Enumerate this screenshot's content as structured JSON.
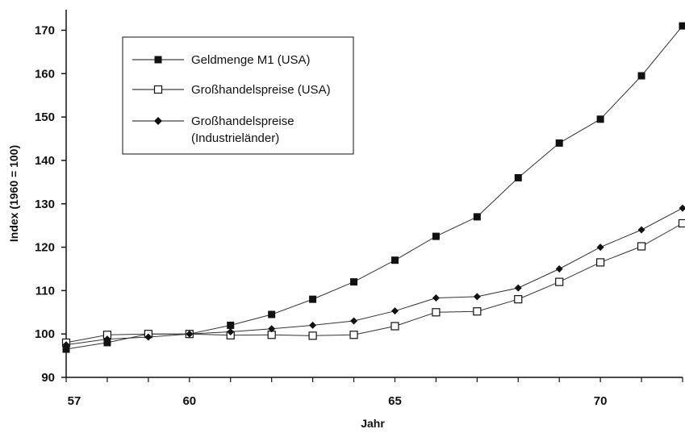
{
  "chart_data": {
    "type": "line",
    "xlabel": "Jahr",
    "ylabel": "Index (1960 = 100)",
    "xlim": [
      57,
      72
    ],
    "ylim": [
      90,
      170
    ],
    "x_ticks": [
      57,
      60,
      65,
      70
    ],
    "y_ticks": [
      90,
      100,
      110,
      120,
      130,
      140,
      150,
      160,
      170
    ],
    "grid": false,
    "legend_position": "top-left",
    "x": [
      57,
      58,
      59,
      60,
      61,
      62,
      63,
      64,
      65,
      66,
      67,
      68,
      69,
      70,
      71,
      72
    ],
    "series": [
      {
        "name": "Geldmenge M1 (USA)",
        "marker": "filled-square",
        "values": [
          96.5,
          98.0,
          100.0,
          100.0,
          102.0,
          104.5,
          108.0,
          112.0,
          117.0,
          122.5,
          127.0,
          136.0,
          144.0,
          149.5,
          159.5,
          171.0
        ]
      },
      {
        "name": "Großhandelspreise (USA)",
        "marker": "open-square",
        "values": [
          98.0,
          99.8,
          100.0,
          100.0,
          99.7,
          99.8,
          99.6,
          99.8,
          101.8,
          105.0,
          105.2,
          108.0,
          112.0,
          116.5,
          120.2,
          125.5
        ]
      },
      {
        "name": "Großhandelspreise",
        "name_line2": "(Industrieländer)",
        "marker": "filled-diamond",
        "values": [
          97.5,
          98.8,
          99.3,
          100.0,
          100.5,
          101.2,
          102.0,
          103.0,
          105.3,
          108.3,
          108.6,
          110.6,
          115.0,
          120.0,
          124.0,
          129.0
        ]
      }
    ]
  }
}
